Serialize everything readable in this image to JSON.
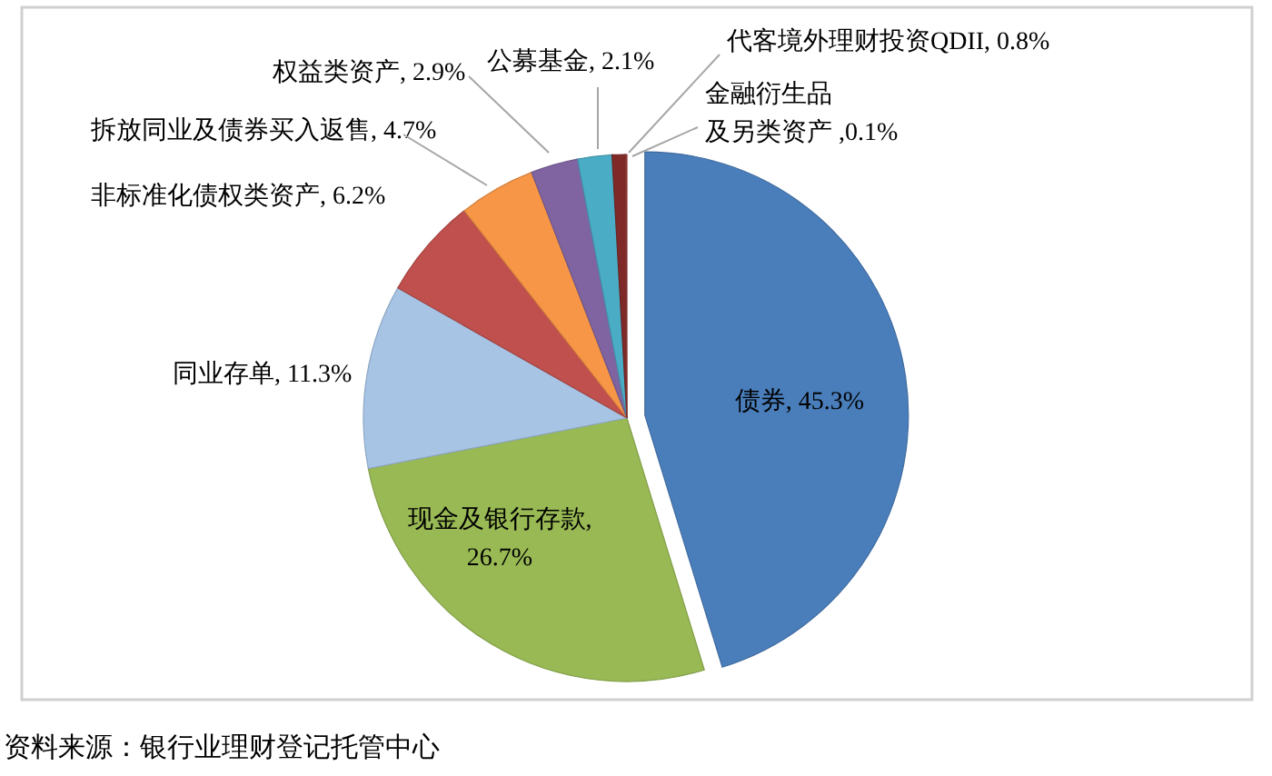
{
  "chart_data": {
    "type": "pie",
    "categories": [
      "债券",
      "现金及银行存款",
      "同业存单",
      "非标准化债权类资产",
      "拆放同业及债券买入返售",
      "权益类资产",
      "公募基金",
      "代客境外理财投资QDII",
      "金融衍生品及另类资产"
    ],
    "values": [
      45.3,
      26.7,
      11.3,
      6.2,
      4.7,
      2.9,
      2.1,
      0.8,
      0.1
    ],
    "value_labels": [
      ", 45.3%",
      ",26.7%",
      ", 11.3%",
      ", 6.2%",
      ", 4.7%",
      ", 2.9%",
      ", 2.1%",
      ", 0.8%",
      " ,0.1%"
    ],
    "colors": [
      "#4a7ebb",
      "#98b954",
      "#a7c4e5",
      "#c0504d",
      "#f79646",
      "#8064a2",
      "#4bacc6",
      "#7f2a28",
      "#9a3a38"
    ],
    "annotations": [
      "资料来源：银行业理财登记托管中心"
    ]
  }
}
